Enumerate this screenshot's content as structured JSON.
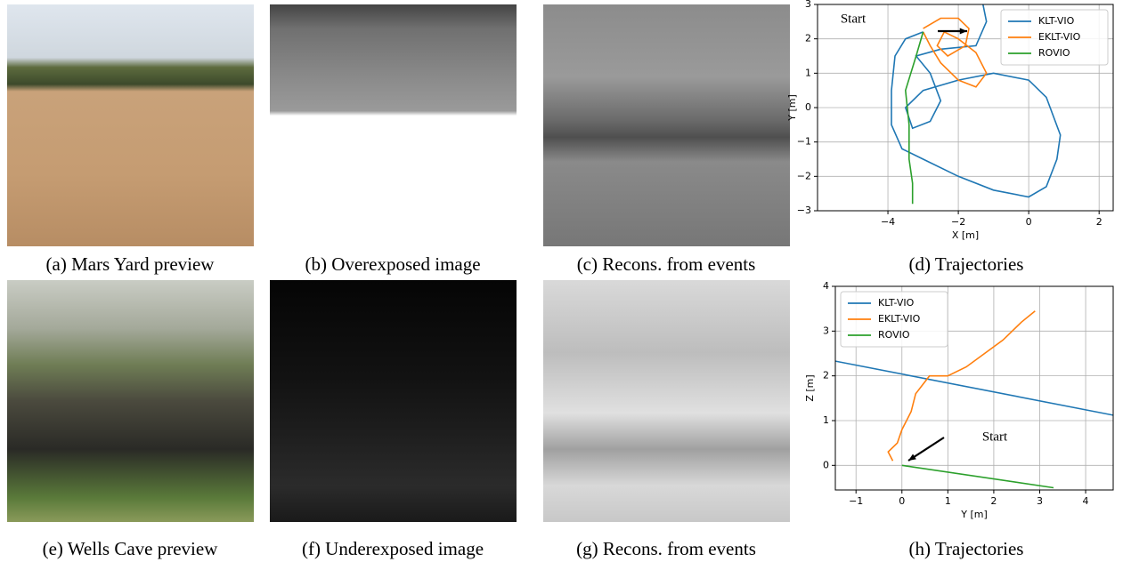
{
  "figure": {
    "panels": [
      "(a) Mars Yard preview",
      "(b) Overexposed image",
      "(c) Recons. from events",
      "(e) Wells Cave preview",
      "(f) Underexposed image",
      "(g) Recons. from events"
    ]
  },
  "chart_data": [
    {
      "type": "line",
      "caption": "(d) Trajectories",
      "xlabel": "X [m]",
      "ylabel": "Y [m]",
      "annotation": "Start",
      "legend": "upper right",
      "grid": true,
      "xlim": [
        -6.0,
        2.4
      ],
      "ylim": [
        -3,
        3
      ],
      "xticks": [
        {
          "value": -4,
          "label": "−4"
        },
        {
          "value": -2,
          "label": "−2"
        },
        0,
        2
      ],
      "yticks": [
        {
          "value": -3,
          "label": "−3"
        },
        {
          "value": -2,
          "label": "−2"
        },
        {
          "value": -1,
          "label": "−1"
        },
        0,
        1,
        2,
        3
      ],
      "series": [
        {
          "name": "KLT-VIO",
          "color": "#1f77b4",
          "x": [
            -3.0,
            -3.5,
            -3.8,
            -3.9,
            -3.9,
            -3.6,
            -3.0,
            -2.0,
            -1.0,
            0.0,
            0.5,
            0.8,
            0.9,
            0.5,
            0.0,
            -1.0,
            -2.0,
            -3.0,
            -3.5,
            -3.3,
            -2.8,
            -2.5,
            -2.8,
            -3.2,
            -2.5,
            -1.5,
            -1.2,
            -1.3
          ],
          "values": [
            2.2,
            2.0,
            1.5,
            0.5,
            -0.5,
            -1.2,
            -1.5,
            -2.0,
            -2.4,
            -2.6,
            -2.3,
            -1.5,
            -0.8,
            0.3,
            0.8,
            1.0,
            0.8,
            0.5,
            0.0,
            -0.6,
            -0.4,
            0.2,
            1.0,
            1.5,
            1.7,
            1.8,
            2.5,
            3.0
          ]
        },
        {
          "name": "EKLT-VIO",
          "color": "#ff7f0e",
          "x": [
            -3.0,
            -2.5,
            -2.0,
            -1.7,
            -1.8,
            -2.3,
            -2.6,
            -2.4,
            -2.0,
            -1.5,
            -1.2,
            -1.5,
            -2.0,
            -2.5,
            -2.8,
            -3.0
          ],
          "values": [
            2.3,
            2.6,
            2.6,
            2.3,
            1.8,
            1.5,
            1.8,
            2.2,
            2.0,
            1.6,
            1.0,
            0.6,
            0.8,
            1.3,
            1.8,
            2.2
          ]
        },
        {
          "name": "ROVIO",
          "color": "#2ca02c",
          "x": [
            -3.0,
            -3.2,
            -3.5,
            -3.4,
            -3.4,
            -3.3,
            -3.3
          ],
          "values": [
            2.2,
            1.5,
            0.5,
            -0.5,
            -1.5,
            -2.2,
            -2.8
          ]
        }
      ]
    },
    {
      "type": "line",
      "caption": "(h) Trajectories",
      "xlabel": "Y [m]",
      "ylabel": "Z [m]",
      "annotation": "Start",
      "legend": "upper left",
      "grid": true,
      "xlim": [
        -1.45,
        4.6
      ],
      "ylim": [
        -0.55,
        4
      ],
      "xticks": [
        {
          "value": -1,
          "label": "−1"
        },
        0,
        1,
        2,
        3,
        4
      ],
      "yticks": [
        0,
        1,
        2,
        3,
        4
      ],
      "series": [
        {
          "name": "KLT-VIO",
          "color": "#1f77b4",
          "x": [
            -1.45,
            4.6
          ],
          "values": [
            2.33,
            1.12
          ]
        },
        {
          "name": "EKLT-VIO",
          "color": "#ff7f0e",
          "x": [
            -0.2,
            -0.3,
            -0.1,
            0.0,
            0.2,
            0.3,
            0.6,
            1.0,
            1.4,
            1.8,
            2.2,
            2.6,
            2.9
          ],
          "values": [
            0.1,
            0.3,
            0.5,
            0.8,
            1.2,
            1.6,
            2.0,
            2.0,
            2.2,
            2.5,
            2.8,
            3.2,
            3.45
          ]
        },
        {
          "name": "ROVIO",
          "color": "#2ca02c",
          "x": [
            0.0,
            3.3
          ],
          "values": [
            0.0,
            -0.5
          ]
        }
      ]
    }
  ]
}
